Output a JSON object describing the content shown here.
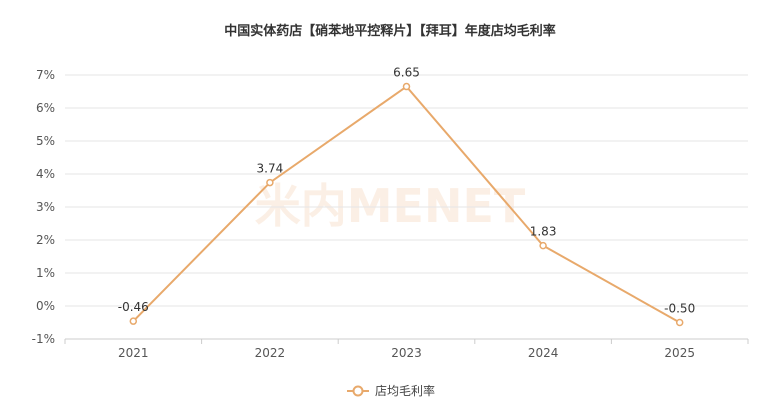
{
  "chart_data": {
    "type": "line",
    "title": "中国实体药店【硝苯地平控释片】【拜耳】年度店均毛利率",
    "categories": [
      "2021",
      "2022",
      "2023",
      "2024",
      "2025"
    ],
    "series": [
      {
        "name": "店均毛利率",
        "values": [
          -0.46,
          3.74,
          6.65,
          1.83,
          -0.5
        ],
        "labels": [
          "-0.46",
          "3.74",
          "6.65",
          "1.83",
          "-0.50"
        ]
      }
    ],
    "ylim": [
      -1,
      7
    ],
    "yticks": [
      -1,
      0,
      1,
      2,
      3,
      4,
      5,
      6,
      7
    ],
    "ytick_labels": [
      "-1%",
      "0%",
      "1%",
      "2%",
      "3%",
      "4%",
      "5%",
      "6%",
      "7%"
    ],
    "grid": true,
    "legend_position": "bottom-center",
    "color": "#e8a96b",
    "watermark": "米内MENET"
  }
}
